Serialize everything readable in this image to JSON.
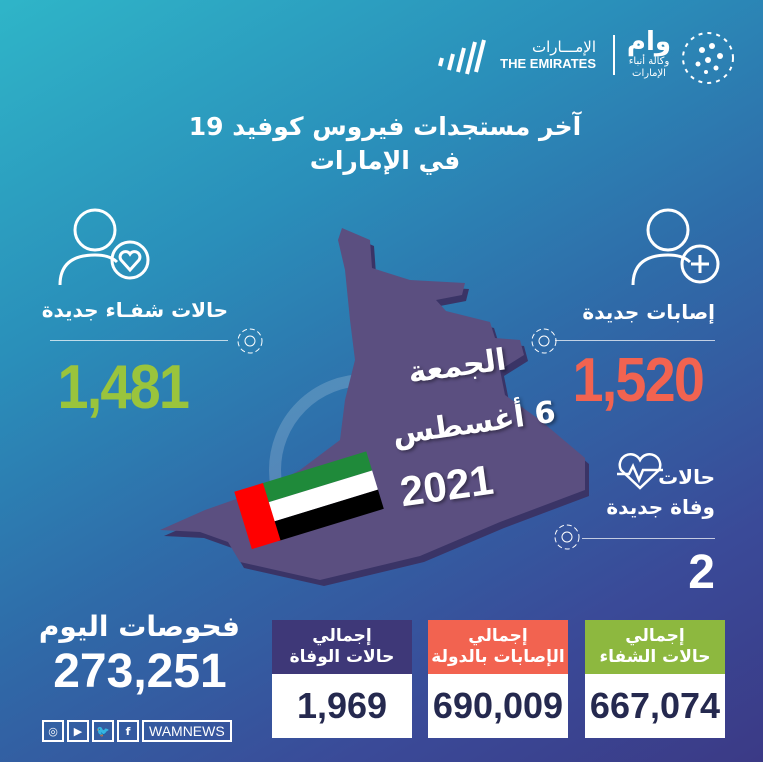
{
  "header": {
    "wam_logo_text": "وام",
    "wam_sub": "وكالة أنباء الإمارات",
    "emirates_ar": "الإمـــارات",
    "emirates_en": "THE EMIRATES"
  },
  "title": {
    "line1": "آخر مستجدات فيروس كوفيد 19",
    "line2": "في الإمارات"
  },
  "date": {
    "day": "الجمعة",
    "date": "6 أغسطس",
    "year": "2021"
  },
  "recoveries": {
    "label": "حالات شفـاء جديدة",
    "value": "1,481",
    "icon": "person-heart-icon",
    "color": "#9ac43c"
  },
  "new_cases": {
    "label": "إصابات جديدة",
    "value": "1,520",
    "icon": "person-plus-icon",
    "color": "#f26350"
  },
  "deaths": {
    "label1": "حالات",
    "label2": "وفاة جديدة",
    "value": "2",
    "icon": "heart-pulse-icon"
  },
  "tests": {
    "label": "فحوصات اليوم",
    "value": "273,251"
  },
  "totals": [
    {
      "line1": "إجمالي",
      "line2": "حالات الوفاة",
      "value": "1,969",
      "color": "#3e3878"
    },
    {
      "line1": "إجمالي",
      "line2": "الإصابات بالدولة",
      "value": "690,009",
      "color": "#f26350"
    },
    {
      "line1": "إجمالي",
      "line2": "حالات الشفاء",
      "value": "667,074",
      "color": "#8db83f"
    }
  ],
  "social": {
    "handle": "WAMNEWS",
    "icons": [
      "instagram-icon",
      "youtube-icon",
      "twitter-icon",
      "facebook-icon"
    ]
  }
}
